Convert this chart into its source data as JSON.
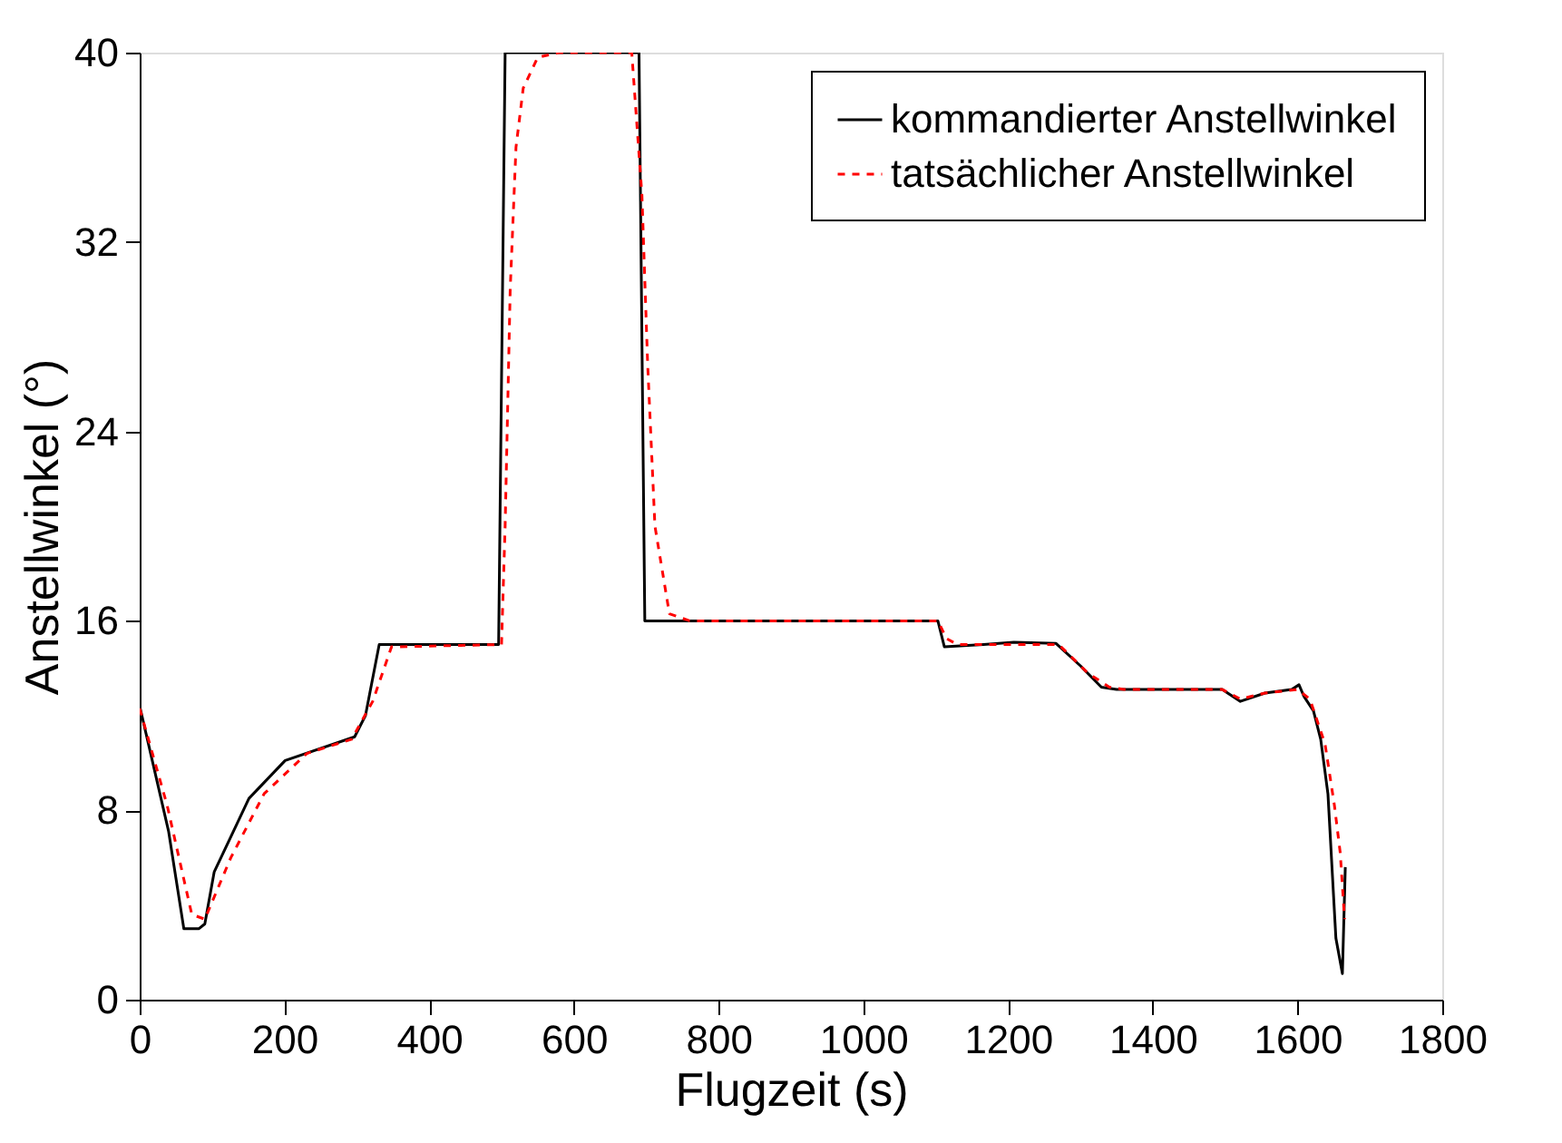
{
  "chart_data": {
    "type": "line",
    "xlabel": "Flugzeit (s)",
    "ylabel": "Anstellwinkel (°)",
    "xlim": [
      0,
      1800
    ],
    "xticks": [
      0,
      200,
      400,
      600,
      800,
      1000,
      1200,
      1400,
      1600,
      1800
    ],
    "ylim": [
      0,
      40
    ],
    "yticks": [
      0,
      8,
      16,
      24,
      32,
      40
    ],
    "grid": false,
    "legend": "top right",
    "marker": "none",
    "series": [
      {
        "name": "kommandierter Anstellwinkel",
        "color": "#000000",
        "line_style": "solid",
        "x": [
          0,
          40,
          61,
          82,
          90,
          103,
          151,
          201,
          297,
          312,
          331,
          496,
          505,
          690,
          698,
          1103,
          1112,
          1166,
          1208,
          1266,
          1300,
          1329,
          1350,
          1496,
          1521,
          1555,
          1592,
          1602,
          1609,
          1622,
          1632,
          1642,
          1653,
          1662,
          1666
        ],
        "values": [
          12.4,
          7.1,
          3.0,
          3.0,
          3.2,
          5.4,
          8.5,
          10.1,
          11.1,
          12.0,
          15.0,
          15.0,
          40,
          40,
          16.0,
          16.0,
          14.9,
          15.0,
          15.1,
          15.05,
          14.1,
          13.2,
          13.1,
          13.1,
          12.6,
          12.95,
          13.1,
          13.3,
          12.8,
          12.2,
          11.0,
          8.7,
          2.6,
          1.1,
          5.6
        ]
      },
      {
        "name": "tatsächlicher Anstellwinkel",
        "color": "#ff0000",
        "line_style": "dashed",
        "x": [
          0,
          38,
          72,
          90,
          126,
          172,
          231,
          293,
          322,
          348,
          500,
          505,
          512,
          520,
          530,
          550,
          580,
          680,
          694,
          702,
          712,
          732,
          760,
          1103,
          1115,
          1130,
          1270,
          1310,
          1340,
          1360,
          1496,
          1521,
          1555,
          1600,
          1617,
          1638,
          1651,
          1659,
          1665
        ],
        "values": [
          12.3,
          8.2,
          3.6,
          3.4,
          6.0,
          8.7,
          10.4,
          11.0,
          12.6,
          14.9,
          15.0,
          20,
          30,
          36,
          38.5,
          39.8,
          40,
          40,
          34,
          26.8,
          20,
          16.3,
          16.0,
          16.0,
          15.25,
          15.0,
          15.0,
          13.8,
          13.2,
          13.1,
          13.1,
          12.7,
          12.95,
          13.1,
          12.7,
          10.8,
          8.2,
          6.2,
          3.4
        ]
      }
    ]
  }
}
